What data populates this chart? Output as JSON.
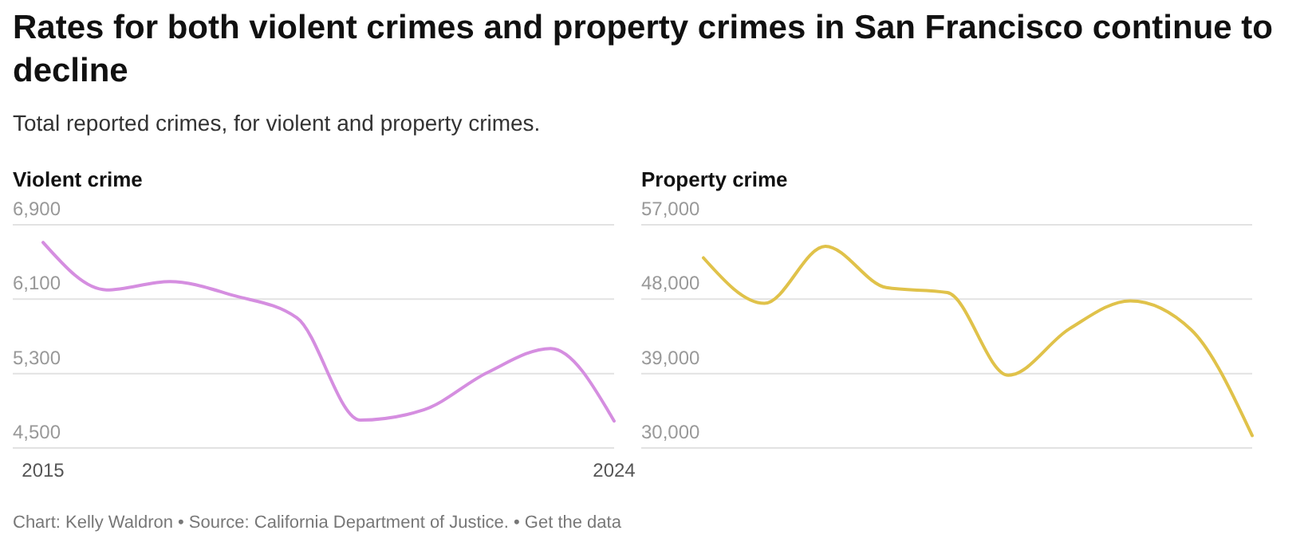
{
  "chart_data": [
    {
      "type": "other",
      "title": "Rates for both violent crimes and property crimes in San Francisco continue to decline",
      "subtitle": "Total reported crimes, for violent and property crimes.",
      "annotations": [
        "Chart: Kelly Waldron • Source: California Department of Justice. • Get the data"
      ]
    },
    {
      "type": "line",
      "title": "Violent crime",
      "categories": [
        "2015",
        null,
        null,
        null,
        null,
        null,
        null,
        null,
        null,
        "2024"
      ],
      "ylim": [
        4500,
        6900
      ],
      "yticks": [
        {
          "value": 4500,
          "label": "4,500"
        },
        {
          "value": 5300,
          "label": "5,300"
        },
        {
          "value": 6100,
          "label": "6,100"
        },
        {
          "value": 6900,
          "label": "6,900"
        }
      ],
      "grid": "y",
      "series": [
        {
          "color": "#d58ee0",
          "values": [
            6710,
            6200,
            6290,
            6140,
            5900,
            4800,
            4910,
            5310,
            5570,
            4790
          ]
        }
      ]
    },
    {
      "type": "line",
      "title": "Property crime",
      "categories": [
        null,
        null,
        null,
        null,
        null,
        null,
        null,
        null,
        null,
        null
      ],
      "ylim": [
        30000,
        57000
      ],
      "yticks": [
        {
          "value": 30000,
          "label": "30,000"
        },
        {
          "value": 39000,
          "label": "39,000"
        },
        {
          "value": 48000,
          "label": "48,000"
        },
        {
          "value": 57000,
          "label": "57,000"
        }
      ],
      "grid": "y",
      "series": [
        {
          "color": "#e0c24a",
          "values": [
            53000,
            47500,
            54400,
            49400,
            48800,
            38800,
            44400,
            47800,
            44300,
            31500
          ]
        }
      ]
    }
  ]
}
